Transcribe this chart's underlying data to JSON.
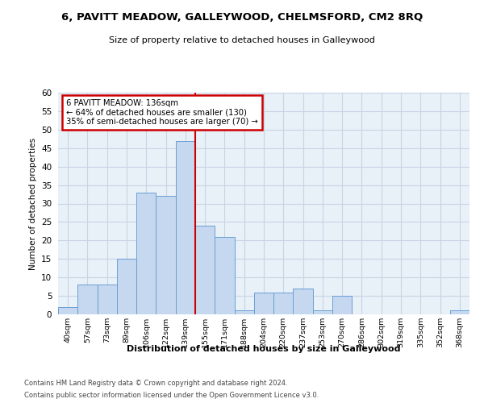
{
  "title_line1": "6, PAVITT MEADOW, GALLEYWOOD, CHELMSFORD, CM2 8RQ",
  "title_line2": "Size of property relative to detached houses in Galleywood",
  "xlabel": "Distribution of detached houses by size in Galleywood",
  "ylabel": "Number of detached properties",
  "bin_labels": [
    "40sqm",
    "57sqm",
    "73sqm",
    "89sqm",
    "106sqm",
    "122sqm",
    "139sqm",
    "155sqm",
    "171sqm",
    "188sqm",
    "204sqm",
    "220sqm",
    "237sqm",
    "253sqm",
    "270sqm",
    "286sqm",
    "302sqm",
    "319sqm",
    "335sqm",
    "352sqm",
    "368sqm"
  ],
  "bar_values": [
    2,
    8,
    8,
    15,
    33,
    32,
    47,
    24,
    21,
    1,
    6,
    6,
    7,
    1,
    5,
    0,
    0,
    0,
    0,
    0,
    1
  ],
  "bar_color": "#c5d8f0",
  "bar_edge_color": "#6b9fd4",
  "vline_index": 6,
  "vline_color": "#cc0000",
  "annotation_text": "6 PAVITT MEADOW: 136sqm\n← 64% of detached houses are smaller (130)\n35% of semi-detached houses are larger (70) →",
  "annotation_box_color": "#ffffff",
  "annotation_box_edge": "#cc0000",
  "ylim": [
    0,
    60
  ],
  "yticks": [
    0,
    5,
    10,
    15,
    20,
    25,
    30,
    35,
    40,
    45,
    50,
    55,
    60
  ],
  "background_color": "#e8f0f8",
  "grid_color": "#c8d4e4",
  "footer_line1": "Contains HM Land Registry data © Crown copyright and database right 2024.",
  "footer_line2": "Contains public sector information licensed under the Open Government Licence v3.0."
}
